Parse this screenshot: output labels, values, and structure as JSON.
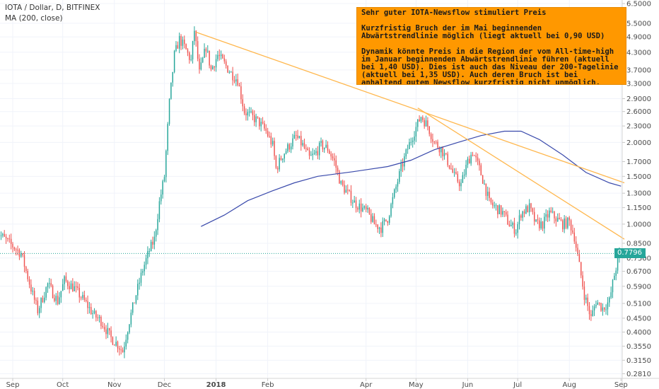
{
  "legend": {
    "symbol": "IOTA / Dollar, D, BITFINEX",
    "indicator": "MA (200, close)"
  },
  "annotation": {
    "title": "Sehr guter IOTA-Newsflow stimuliert Preis",
    "paragraph1": "Kurzfristig Bruch der im Mai beginnenden Abwärtstrendlinie möglich (liegt aktuell bei 0,90 USD)",
    "paragraph2": "Dynamik könnte Preis in die Region der vom All-time-high im Januar beginnenden Abwärtstrendlinie führen (aktuell bei 1,40 USD). Dies ist auch das Niveau der 200-Tagelinie (aktuell bei 1,35 USD). Auch deren Bruch ist bei anhaltend gutem Newsflow kurzfristig nicht unmöglich."
  },
  "current_price_label": "0.7796",
  "colors": {
    "up": "#26a69a",
    "down": "#ef5350",
    "ma": "#3949ab",
    "trendline": "#ffb74d",
    "annotation_bg": "#ff9800",
    "price_line": "#26a69a"
  },
  "chart_data": {
    "type": "candlestick",
    "y_scale": "log",
    "ylim": [
      0.27,
      6.7
    ],
    "y_ticks": [
      "6.5000",
      "5.5000",
      "4.9000",
      "4.3000",
      "3.7000",
      "3.3000",
      "2.9000",
      "2.6000",
      "2.3000",
      "2.0000",
      "1.7000",
      "1.5000",
      "1.3000",
      "1.1500",
      "1.0000",
      "0.8500",
      "0.7500",
      "0.6700",
      "0.5900",
      "0.5100",
      "0.4500",
      "0.4000",
      "0.3550",
      "0.3150",
      "0.2810"
    ],
    "x_range": [
      "2017-09-01",
      "2018-09-03"
    ],
    "x_ticks": [
      {
        "label": "Sep",
        "date": "2017-09-01"
      },
      {
        "label": "Oct",
        "date": "2017-10-01"
      },
      {
        "label": "Nov",
        "date": "2017-11-01"
      },
      {
        "label": "Dec",
        "date": "2017-12-01"
      },
      {
        "label": "2018",
        "date": "2018-01-01"
      },
      {
        "label": "Feb",
        "date": "2018-02-01"
      },
      {
        "label": "Apr",
        "date": "2018-04-01"
      },
      {
        "label": "May",
        "date": "2018-05-01"
      },
      {
        "label": "Jun",
        "date": "2018-06-01"
      },
      {
        "label": "Jul",
        "date": "2018-07-01"
      },
      {
        "label": "Aug",
        "date": "2018-08-01"
      },
      {
        "label": "Sep",
        "date": "2018-09-01"
      }
    ],
    "price_series": [
      [
        "2017-08-22",
        0.94
      ],
      [
        "2017-08-30",
        0.85
      ],
      [
        "2017-09-06",
        0.78
      ],
      [
        "2017-09-13",
        0.55
      ],
      [
        "2017-09-16",
        0.48
      ],
      [
        "2017-09-22",
        0.6
      ],
      [
        "2017-09-28",
        0.52
      ],
      [
        "2017-10-02",
        0.62
      ],
      [
        "2017-10-08",
        0.58
      ],
      [
        "2017-10-14",
        0.52
      ],
      [
        "2017-10-20",
        0.46
      ],
      [
        "2017-10-24",
        0.44
      ],
      [
        "2017-10-30",
        0.38
      ],
      [
        "2017-11-03",
        0.36
      ],
      [
        "2017-11-06",
        0.34
      ],
      [
        "2017-11-10",
        0.44
      ],
      [
        "2017-11-14",
        0.55
      ],
      [
        "2017-11-18",
        0.68
      ],
      [
        "2017-11-22",
        0.8
      ],
      [
        "2017-11-25",
        0.88
      ],
      [
        "2017-11-28",
        1.2
      ],
      [
        "2017-12-01",
        1.5
      ],
      [
        "2017-12-04",
        2.8
      ],
      [
        "2017-12-07",
        4.2
      ],
      [
        "2017-12-10",
        4.8
      ],
      [
        "2017-12-13",
        4.5
      ],
      [
        "2017-12-17",
        4.0
      ],
      [
        "2017-12-19",
        5.2
      ],
      [
        "2017-12-22",
        3.6
      ],
      [
        "2017-12-26",
        4.5
      ],
      [
        "2017-12-29",
        3.7
      ],
      [
        "2018-01-02",
        4.2
      ],
      [
        "2018-01-06",
        3.9
      ],
      [
        "2018-01-10",
        3.6
      ],
      [
        "2018-01-14",
        3.4
      ],
      [
        "2018-01-18",
        2.6
      ],
      [
        "2018-01-22",
        2.5
      ],
      [
        "2018-01-26",
        2.4
      ],
      [
        "2018-01-31",
        2.2
      ],
      [
        "2018-02-04",
        1.95
      ],
      [
        "2018-02-06",
        1.6
      ],
      [
        "2018-02-10",
        1.8
      ],
      [
        "2018-02-14",
        1.95
      ],
      [
        "2018-02-18",
        2.1
      ],
      [
        "2018-02-22",
        1.95
      ],
      [
        "2018-02-26",
        1.75
      ],
      [
        "2018-03-01",
        1.8
      ],
      [
        "2018-03-05",
        1.95
      ],
      [
        "2018-03-09",
        1.9
      ],
      [
        "2018-03-13",
        1.7
      ],
      [
        "2018-03-17",
        1.4
      ],
      [
        "2018-03-21",
        1.3
      ],
      [
        "2018-03-25",
        1.2
      ],
      [
        "2018-03-29",
        1.15
      ],
      [
        "2018-04-02",
        1.1
      ],
      [
        "2018-04-06",
        1.0
      ],
      [
        "2018-04-10",
        0.97
      ],
      [
        "2018-04-14",
        1.05
      ],
      [
        "2018-04-18",
        1.3
      ],
      [
        "2018-04-22",
        1.6
      ],
      [
        "2018-04-26",
        1.9
      ],
      [
        "2018-04-30",
        2.2
      ],
      [
        "2018-05-04",
        2.5
      ],
      [
        "2018-05-08",
        2.3
      ],
      [
        "2018-05-12",
        2.0
      ],
      [
        "2018-05-16",
        1.9
      ],
      [
        "2018-05-20",
        1.7
      ],
      [
        "2018-05-24",
        1.5
      ],
      [
        "2018-05-28",
        1.4
      ],
      [
        "2018-06-01",
        1.7
      ],
      [
        "2018-06-04",
        1.85
      ],
      [
        "2018-06-08",
        1.6
      ],
      [
        "2018-06-11",
        1.4
      ],
      [
        "2018-06-14",
        1.2
      ],
      [
        "2018-06-18",
        1.15
      ],
      [
        "2018-06-22",
        1.1
      ],
      [
        "2018-06-26",
        1.0
      ],
      [
        "2018-06-30",
        0.95
      ],
      [
        "2018-07-03",
        1.1
      ],
      [
        "2018-07-08",
        1.15
      ],
      [
        "2018-07-12",
        1.0
      ],
      [
        "2018-07-16",
        1.0
      ],
      [
        "2018-07-20",
        1.1
      ],
      [
        "2018-07-24",
        1.05
      ],
      [
        "2018-07-28",
        1.0
      ],
      [
        "2018-08-01",
        1.02
      ],
      [
        "2018-08-04",
        0.9
      ],
      [
        "2018-08-07",
        0.7
      ],
      [
        "2018-08-10",
        0.55
      ],
      [
        "2018-08-14",
        0.45
      ],
      [
        "2018-08-17",
        0.52
      ],
      [
        "2018-08-21",
        0.49
      ],
      [
        "2018-08-25",
        0.52
      ],
      [
        "2018-08-28",
        0.65
      ],
      [
        "2018-08-31",
        0.78
      ]
    ],
    "ma_200": [
      [
        "2017-12-23",
        0.98
      ],
      [
        "2018-01-06",
        1.08
      ],
      [
        "2018-01-20",
        1.22
      ],
      [
        "2018-02-03",
        1.32
      ],
      [
        "2018-02-17",
        1.42
      ],
      [
        "2018-03-03",
        1.5
      ],
      [
        "2018-03-24",
        1.56
      ],
      [
        "2018-04-14",
        1.63
      ],
      [
        "2018-04-28",
        1.72
      ],
      [
        "2018-05-12",
        1.88
      ],
      [
        "2018-05-26",
        2.0
      ],
      [
        "2018-06-09",
        2.12
      ],
      [
        "2018-06-23",
        2.2
      ],
      [
        "2018-07-03",
        2.2
      ],
      [
        "2018-07-14",
        2.05
      ],
      [
        "2018-07-28",
        1.8
      ],
      [
        "2018-08-11",
        1.55
      ],
      [
        "2018-08-25",
        1.42
      ],
      [
        "2018-09-01",
        1.38
      ]
    ],
    "trendline_1": [
      [
        "2017-12-20",
        5.1
      ],
      [
        "2018-09-03",
        1.42
      ]
    ],
    "trendline_2": [
      [
        "2018-05-02",
        2.68
      ],
      [
        "2018-09-03",
        0.88
      ]
    ],
    "current_price": 0.7796
  }
}
